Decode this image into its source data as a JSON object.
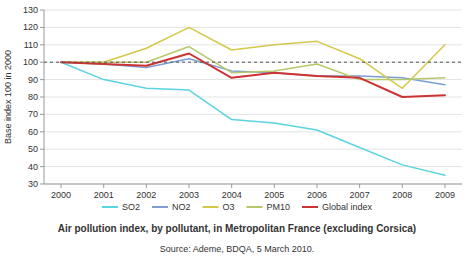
{
  "chart_data": {
    "type": "line",
    "title": "Air pollution index, by pollutant, in Metropolitan France (excluding Corsica)",
    "annotations": [
      "Source: Ademe, BDQA, 5 March 2010."
    ],
    "y_label": "Base index 100 in 2000",
    "x": [
      2000,
      2001,
      2002,
      2003,
      2004,
      2005,
      2006,
      2007,
      2008,
      2009
    ],
    "series": [
      {
        "name": "SO2",
        "color": "#5ad4e0",
        "values": [
          100,
          90,
          85,
          84,
          67,
          65,
          61,
          51,
          41,
          35
        ]
      },
      {
        "name": "NO2",
        "color": "#7b9fd4",
        "values": [
          100,
          99,
          97,
          102,
          95,
          94,
          92,
          92,
          91,
          87
        ]
      },
      {
        "name": "O3",
        "color": "#d4c84a",
        "values": [
          100,
          100,
          108,
          120,
          107,
          110,
          112,
          102,
          85,
          110
        ]
      },
      {
        "name": "PM10",
        "color": "#b5c96a",
        "values": [
          100,
          100,
          100,
          109,
          94,
          95,
          99,
          90,
          90,
          91
        ]
      },
      {
        "name": "Global index",
        "color": "#cc3333",
        "values": [
          100,
          99,
          98,
          105,
          91,
          94,
          92,
          91,
          80,
          81
        ]
      }
    ],
    "reference_line": 100,
    "xlim": [
      1999.6,
      2009.4
    ],
    "xticks": [
      2000,
      2001,
      2002,
      2003,
      2004,
      2005,
      2006,
      2007,
      2008,
      2009
    ],
    "ylim": [
      30,
      130
    ],
    "yticks": [
      30,
      40,
      50,
      60,
      70,
      80,
      90,
      100,
      110,
      120,
      130
    ],
    "grid": true,
    "legend": "bottom"
  }
}
